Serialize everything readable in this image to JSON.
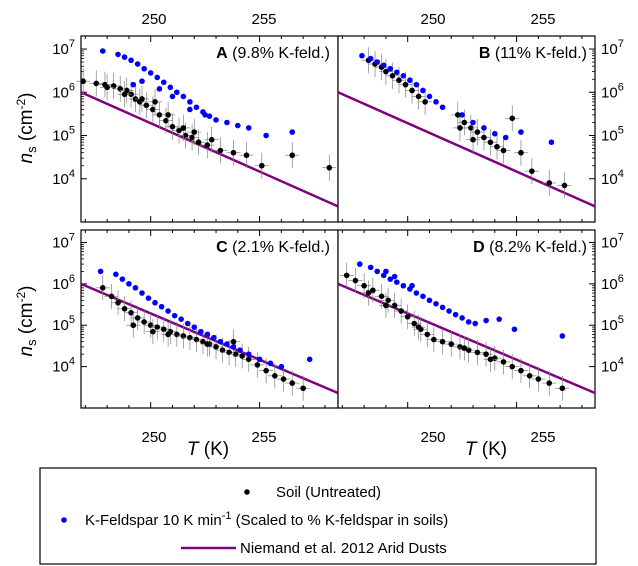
{
  "chart_data": {
    "type": "scatter",
    "x_axis": {
      "label": "T",
      "unit": "(K)",
      "range": [
        246.8,
        258.6
      ],
      "ticks": [
        250,
        255
      ],
      "tick_labels": [
        "250",
        "255"
      ]
    },
    "y_axis": {
      "label": "n",
      "subscript": "s",
      "unit_prefix": "(cm",
      "unit_exp": "-2",
      "unit_suffix": ")",
      "scale": "log",
      "range": [
        1000,
        20000000
      ],
      "ticks": [
        10000,
        100000,
        1000000,
        10000000
      ],
      "tick_labels": [
        {
          "base": "10",
          "exp": "4"
        },
        {
          "base": "10",
          "exp": "5"
        },
        {
          "base": "10",
          "exp": "6"
        },
        {
          "base": "10",
          "exp": "7"
        }
      ]
    },
    "colors": {
      "soil": "#000000",
      "kfeld": "#0000ff",
      "niemand": "#800080"
    },
    "panels": [
      {
        "letter": "A",
        "text": " (9.8% K-feld.)",
        "soil": [
          [
            246.9,
            1800000.0
          ],
          [
            247.5,
            1600000.0
          ],
          [
            247.9,
            1500000.0
          ],
          [
            248.3,
            1400000.0
          ],
          [
            248.6,
            1200000.0
          ],
          [
            248.9,
            1100000.0
          ],
          [
            249.1,
            900000.0
          ],
          [
            249.3,
            700000.0
          ],
          [
            249.5,
            600000.0
          ],
          [
            249.8,
            500000.0
          ],
          [
            250.1,
            400000.0
          ],
          [
            250.4,
            300000.0
          ],
          [
            250.7,
            220000.0
          ],
          [
            251.0,
            160000.0
          ],
          [
            251.3,
            130000.0
          ],
          [
            251.6,
            100000.0
          ],
          [
            251.9,
            90000.0
          ],
          [
            252.2,
            70000.0
          ],
          [
            252.6,
            60000.0
          ],
          [
            253.2,
            45000.0
          ],
          [
            253.8,
            40000.0
          ],
          [
            254.4,
            35000.0
          ],
          [
            255.1,
            20000.0
          ],
          [
            256.5,
            35000.0
          ],
          [
            258.2,
            18000.0
          ],
          [
            248.0,
            1300000.0
          ],
          [
            248.8,
            900000.0
          ],
          [
            249.6,
            700000.0
          ],
          [
            250.2,
            600000.0
          ],
          [
            250.8,
            300000.0
          ],
          [
            251.5,
            150000.0
          ],
          [
            252.0,
            120000.0
          ],
          [
            252.8,
            80000.0
          ]
        ],
        "kfeld": [
          [
            247.8,
            9000000.0
          ],
          [
            248.5,
            7500000.0
          ],
          [
            248.8,
            6500000.0
          ],
          [
            249.1,
            5500000.0
          ],
          [
            249.4,
            4500000.0
          ],
          [
            249.7,
            3500000.0
          ],
          [
            250.0,
            2800000.0
          ],
          [
            250.3,
            2200000.0
          ],
          [
            250.6,
            1700000.0
          ],
          [
            250.9,
            1300000.0
          ],
          [
            251.2,
            1000000.0
          ],
          [
            251.5,
            800000.0
          ],
          [
            251.8,
            600000.0
          ],
          [
            252.1,
            450000.0
          ],
          [
            252.4,
            350000.0
          ],
          [
            252.7,
            280000.0
          ],
          [
            253.0,
            230000.0
          ],
          [
            253.5,
            200000.0
          ],
          [
            254.0,
            170000.0
          ],
          [
            254.5,
            150000.0
          ],
          [
            255.3,
            100000.0
          ],
          [
            256.5,
            120000.0
          ],
          [
            249.2,
            1500000.0
          ],
          [
            249.6,
            1800000.0
          ],
          [
            250.4,
            1200000.0
          ],
          [
            251.0,
            800000.0
          ],
          [
            251.8,
            400000.0
          ],
          [
            252.5,
            300000.0
          ]
        ]
      },
      {
        "letter": "B",
        "text": " (11% K-feld.)",
        "soil": [
          [
            248.2,
            5500000.0
          ],
          [
            248.5,
            4500000.0
          ],
          [
            248.8,
            3800000.0
          ],
          [
            249.0,
            3000000.0
          ],
          [
            249.3,
            2400000.0
          ],
          [
            249.6,
            1900000.0
          ],
          [
            249.9,
            1500000.0
          ],
          [
            250.2,
            1100000.0
          ],
          [
            250.5,
            800000.0
          ],
          [
            250.8,
            600000.0
          ],
          [
            252.3,
            300000.0
          ],
          [
            252.6,
            200000.0
          ],
          [
            252.9,
            150000.0
          ],
          [
            253.2,
            120000.0
          ],
          [
            253.5,
            90000.0
          ],
          [
            253.8,
            70000.0
          ],
          [
            254.1,
            55000.0
          ],
          [
            254.4,
            45000.0
          ],
          [
            254.8,
            250000.0
          ],
          [
            255.2,
            40000.0
          ],
          [
            255.7,
            15000.0
          ],
          [
            256.5,
            8000.0
          ],
          [
            257.2,
            7000.0
          ],
          [
            252.4,
            150000.0
          ],
          [
            253.0,
            80000.0
          ]
        ],
        "kfeld": [
          [
            247.9,
            7000000.0
          ],
          [
            248.3,
            6000000.0
          ],
          [
            248.6,
            5000000.0
          ],
          [
            248.9,
            4200000.0
          ],
          [
            249.2,
            3500000.0
          ],
          [
            249.5,
            2900000.0
          ],
          [
            249.8,
            2400000.0
          ],
          [
            250.1,
            1900000.0
          ],
          [
            250.4,
            1500000.0
          ],
          [
            250.7,
            1100000.0
          ],
          [
            251.0,
            800000.0
          ],
          [
            251.3,
            600000.0
          ],
          [
            251.6,
            450000.0
          ],
          [
            252.5,
            300000.0
          ],
          [
            253.0,
            200000.0
          ],
          [
            253.5,
            150000.0
          ],
          [
            254.0,
            110000.0
          ],
          [
            254.5,
            90000.0
          ],
          [
            255.2,
            120000.0
          ],
          [
            256.6,
            70000.0
          ]
        ]
      },
      {
        "letter": "C",
        "text": " (2.1% K-feld.)",
        "soil": [
          [
            247.8,
            800000.0
          ],
          [
            248.2,
            500000.0
          ],
          [
            248.5,
            350000.0
          ],
          [
            248.8,
            250000.0
          ],
          [
            249.1,
            200000.0
          ],
          [
            249.4,
            150000.0
          ],
          [
            249.7,
            120000.0
          ],
          [
            250.0,
            100000.0
          ],
          [
            250.3,
            90000.0
          ],
          [
            250.6,
            80000.0
          ],
          [
            250.9,
            70000.0
          ],
          [
            251.2,
            60000.0
          ],
          [
            251.5,
            55000.0
          ],
          [
            251.8,
            50000.0
          ],
          [
            252.1,
            45000.0
          ],
          [
            252.4,
            40000.0
          ],
          [
            252.7,
            35000.0
          ],
          [
            253.0,
            30000.0
          ],
          [
            253.3,
            25000.0
          ],
          [
            253.6,
            22000.0
          ],
          [
            253.9,
            20000.0
          ],
          [
            254.2,
            18000.0
          ],
          [
            254.5,
            15000.0
          ],
          [
            254.9,
            11000.0
          ],
          [
            255.3,
            8000.0
          ],
          [
            255.7,
            6000.0
          ],
          [
            256.1,
            5000.0
          ],
          [
            256.5,
            4000.0
          ],
          [
            257.0,
            3000.0
          ],
          [
            249.2,
            100000.0
          ],
          [
            250.1,
            70000.0
          ],
          [
            250.8,
            60000.0
          ],
          [
            252.6,
            35000.0
          ],
          [
            253.8,
            40000.0
          ]
        ],
        "kfeld": [
          [
            247.7,
            2000000.0
          ],
          [
            248.4,
            1700000.0
          ],
          [
            248.7,
            1300000.0
          ],
          [
            249.0,
            1000000.0
          ],
          [
            249.3,
            800000.0
          ],
          [
            249.6,
            600000.0
          ],
          [
            249.9,
            450000.0
          ],
          [
            250.2,
            350000.0
          ],
          [
            250.5,
            280000.0
          ],
          [
            250.8,
            220000.0
          ],
          [
            251.1,
            170000.0
          ],
          [
            251.4,
            140000.0
          ],
          [
            251.7,
            110000.0
          ],
          [
            252.0,
            90000.0
          ],
          [
            252.3,
            70000.0
          ],
          [
            252.6,
            60000.0
          ],
          [
            252.9,
            50000.0
          ],
          [
            253.2,
            40000.0
          ],
          [
            253.5,
            35000.0
          ],
          [
            253.8,
            30000.0
          ],
          [
            254.1,
            25000.0
          ],
          [
            254.5,
            20000.0
          ],
          [
            255.0,
            15000.0
          ],
          [
            255.5,
            12000.0
          ],
          [
            256.0,
            10000.0
          ],
          [
            257.3,
            15000.0
          ]
        ]
      },
      {
        "letter": "D",
        "text": " (8.2% K-feld.)",
        "soil": [
          [
            247.2,
            1600000.0
          ],
          [
            247.6,
            1200000.0
          ],
          [
            248.0,
            900000.0
          ],
          [
            248.4,
            700000.0
          ],
          [
            248.8,
            500000.0
          ],
          [
            249.1,
            400000.0
          ],
          [
            249.4,
            300000.0
          ],
          [
            249.7,
            220000.0
          ],
          [
            250.0,
            160000.0
          ],
          [
            250.3,
            110000.0
          ],
          [
            250.6,
            80000.0
          ],
          [
            250.9,
            60000.0
          ],
          [
            251.2,
            45000.0
          ],
          [
            251.6,
            40000.0
          ],
          [
            252.0,
            35000.0
          ],
          [
            252.4,
            30000.0
          ],
          [
            252.8,
            25000.0
          ],
          [
            253.2,
            22000.0
          ],
          [
            253.6,
            20000.0
          ],
          [
            254.0,
            16000.0
          ],
          [
            254.4,
            13000.0
          ],
          [
            254.8,
            10000.0
          ],
          [
            255.2,
            8000.0
          ],
          [
            255.6,
            6000.0
          ],
          [
            256.0,
            5000.0
          ],
          [
            256.5,
            4000.0
          ],
          [
            257.1,
            3000.0
          ],
          [
            248.2,
            600000.0
          ],
          [
            249.0,
            300000.0
          ],
          [
            250.5,
            90000.0
          ],
          [
            252.6,
            28000.0
          ],
          [
            253.8,
            15000.0
          ]
        ],
        "kfeld": [
          [
            247.8,
            3000000.0
          ],
          [
            248.3,
            2500000.0
          ],
          [
            248.6,
            2000000.0
          ],
          [
            248.9,
            1600000.0
          ],
          [
            249.2,
            1300000.0
          ],
          [
            249.5,
            1100000.0
          ],
          [
            249.8,
            900000.0
          ],
          [
            250.1,
            750000.0
          ],
          [
            250.4,
            600000.0
          ],
          [
            250.7,
            500000.0
          ],
          [
            251.0,
            400000.0
          ],
          [
            251.3,
            330000.0
          ],
          [
            251.6,
            270000.0
          ],
          [
            251.9,
            220000.0
          ],
          [
            252.2,
            180000.0
          ],
          [
            252.5,
            150000.0
          ],
          [
            252.8,
            120000.0
          ],
          [
            253.1,
            110000.0
          ],
          [
            253.6,
            130000.0
          ],
          [
            254.2,
            140000.0
          ],
          [
            254.9,
            80000.0
          ],
          [
            257.1,
            55000.0
          ],
          [
            249.0,
            2000000.0
          ],
          [
            249.4,
            1500000.0
          ],
          [
            250.2,
            900000.0
          ]
        ]
      }
    ],
    "niemand": {
      "x": [
        246.8,
        258.6
      ],
      "y": [
        1000000,
        2300
      ]
    },
    "legend": {
      "placement": "bottom",
      "items": [
        {
          "key": "soil",
          "label": "Soil (Untreated)"
        },
        {
          "key": "kfeld",
          "label": "K-Feldspar 10 K min",
          "sup": "-1",
          "tail": " (Scaled to % K-feldspar in soils)"
        },
        {
          "key": "niemand",
          "label": "Niemand et al. 2012 Arid Dusts"
        }
      ]
    }
  }
}
